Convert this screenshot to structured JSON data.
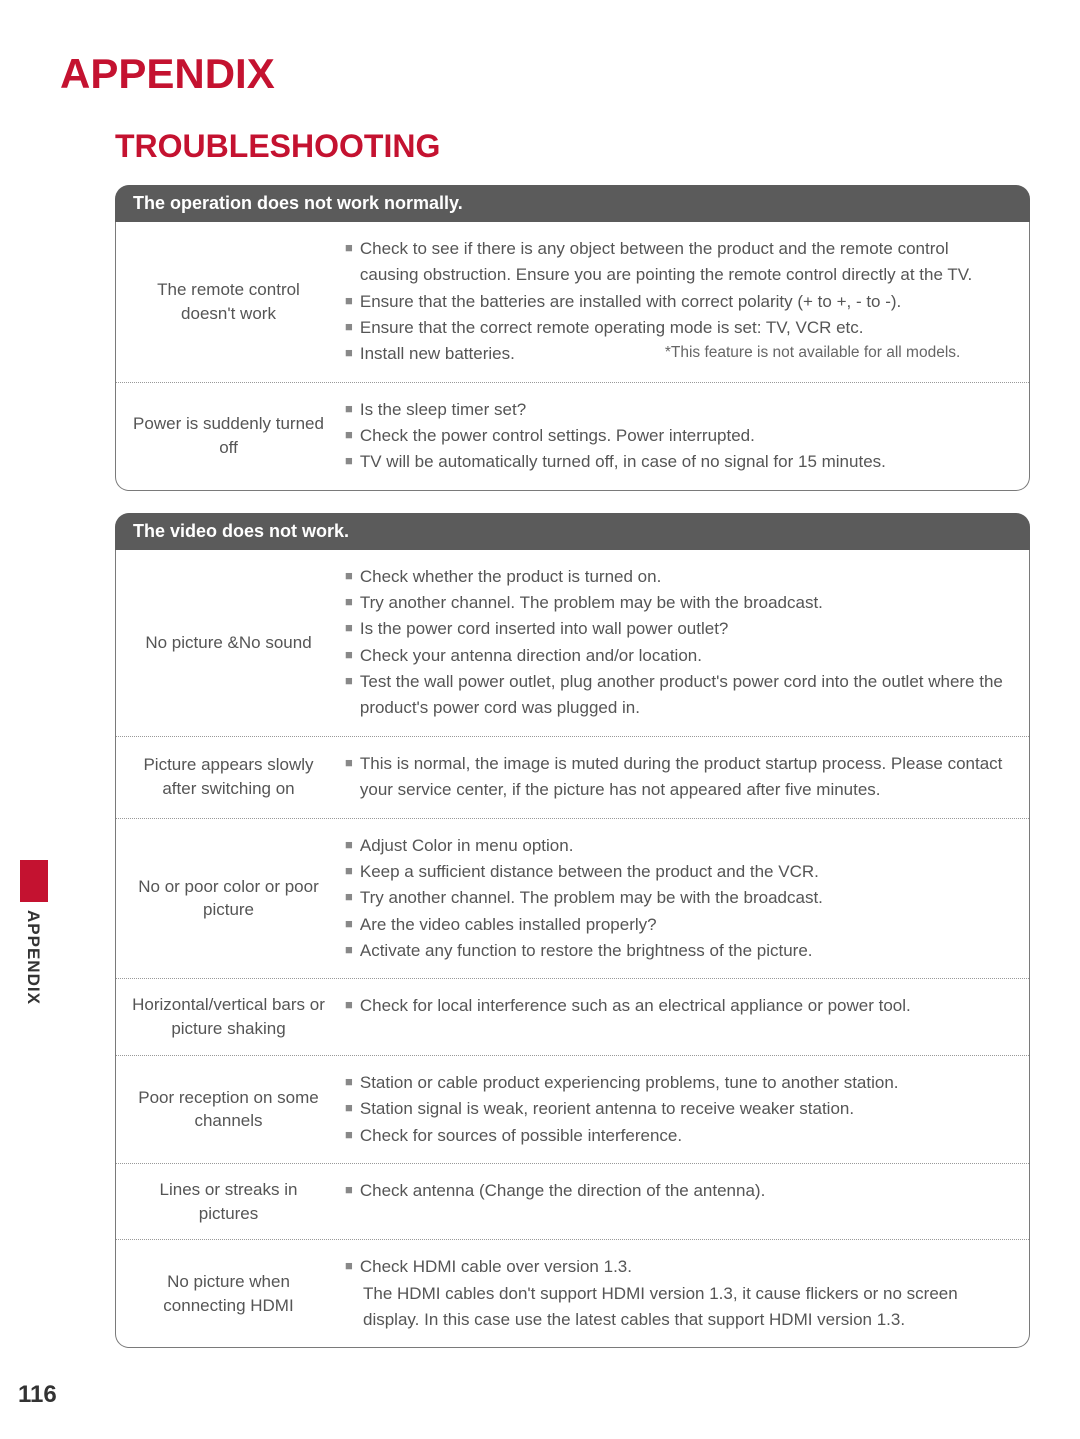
{
  "title": "APPENDIX",
  "subtitle": "TROUBLESHOOTING",
  "sideLabel": "APPENDIX",
  "pageNumber": "116",
  "colors": {
    "accent": "#c41230",
    "headerBg": "#5b5b5b",
    "headerText": "#ffffff",
    "bodyText": "#555555",
    "border": "#7a7a7a"
  },
  "sections": [
    {
      "header": "The operation does not work normally.",
      "rows": [
        {
          "label": "The remote control doesn't work",
          "bullets": [
            "Check to see if there is any object between the product and the remote control causing obstruction. Ensure you are pointing the remote control directly at the TV.",
            "Ensure that the batteries are installed with correct polarity (+ to +, - to -).",
            "Ensure that the correct remote operating mode is set: TV, VCR etc."
          ],
          "footnoteLeft": "Install new batteries.",
          "footnoteRight": "*This feature is not available for all models."
        },
        {
          "label": "Power is suddenly turned off",
          "bullets": [
            "Is the sleep timer set?",
            "Check the power control settings. Power interrupted.",
            "TV will be automatically turned off, in case of no signal for 15 minutes."
          ]
        }
      ]
    },
    {
      "header": "The video does not work.",
      "rows": [
        {
          "label": "No picture &No sound",
          "bullets": [
            "Check whether the product is turned on.",
            "Try another channel. The problem may be with the broadcast.",
            "Is the power cord inserted into wall power outlet?",
            "Check your antenna direction and/or location.",
            "Test the wall power outlet, plug another product's power cord into the outlet where the product's power cord was plugged in."
          ]
        },
        {
          "label": "Picture appears slowly after switching on",
          "bullets": [
            "This is normal, the image is muted during the product startup process. Please contact your service center, if the picture has not appeared after five minutes."
          ]
        },
        {
          "label": "No or poor color or poor picture",
          "bullets": [
            "Adjust Color in menu option.",
            "Keep a sufficient distance between the product and the VCR.",
            "Try another channel. The problem may be with the broadcast.",
            "Are the video cables installed properly?",
            "Activate any function to restore the brightness of the picture."
          ]
        },
        {
          "label": "Horizontal/vertical bars or picture shaking",
          "bullets": [
            "Check for local interference such as an electrical appliance or power tool."
          ]
        },
        {
          "label": "Poor reception on some channels",
          "bullets": [
            "Station or cable product experiencing problems, tune to another station.",
            "Station signal is weak, reorient antenna to receive weaker station.",
            "Check for sources of possible interference."
          ]
        },
        {
          "label": "Lines or streaks in pictures",
          "bullets": [
            "Check antenna (Change the direction of the antenna)."
          ]
        },
        {
          "label": "No picture when connecting HDMI",
          "bullets": [
            "Check HDMI cable over version 1.3."
          ],
          "extraIndent": "The HDMI cables don't support HDMI version 1.3, it cause flickers or no screen display. In this case use the latest cables that support HDMI version 1.3."
        }
      ]
    }
  ]
}
